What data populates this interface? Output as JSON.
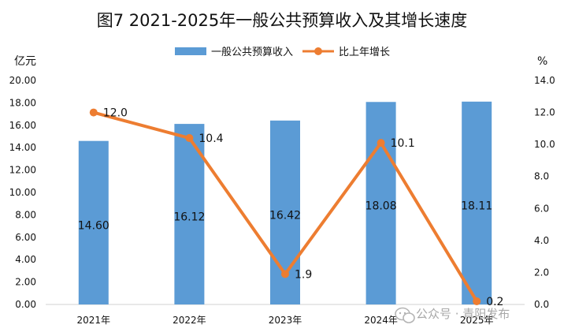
{
  "chart_data": {
    "type": "bar+line",
    "title": "图7  2021-2025年一般公共预算收入及其增长速度",
    "categories": [
      "2021年",
      "2022年",
      "2023年",
      "2024年",
      "2025年"
    ],
    "series": [
      {
        "name": "一般公共预算收入",
        "type": "bar",
        "axis": "left",
        "values": [
          14.6,
          16.12,
          16.42,
          18.08,
          18.11
        ],
        "labels": [
          "14.60",
          "16.12",
          "16.42",
          "18.08",
          "18.11"
        ],
        "color": "#5b9bd5"
      },
      {
        "name": "比上年增长",
        "type": "line",
        "axis": "right",
        "values": [
          12.0,
          10.4,
          1.9,
          10.1,
          0.2
        ],
        "labels": [
          "12.0",
          "10.4",
          "1.9",
          "10.1",
          "0.2"
        ],
        "color": "#ed7d31"
      }
    ],
    "y_left": {
      "unit": "亿元",
      "range": [
        0,
        20
      ],
      "ticks": [
        "0.00",
        "2.00",
        "4.00",
        "6.00",
        "8.00",
        "10.00",
        "12.00",
        "14.00",
        "16.00",
        "18.00",
        "20.00"
      ]
    },
    "y_right": {
      "unit": "%",
      "range": [
        0,
        14
      ],
      "ticks": [
        "0.0",
        "2.0",
        "4.0",
        "6.0",
        "8.0",
        "10.0",
        "12.0",
        "14.0"
      ]
    },
    "grid": false,
    "legend": "top-center"
  },
  "watermark": "公众号 · 青阳发布"
}
